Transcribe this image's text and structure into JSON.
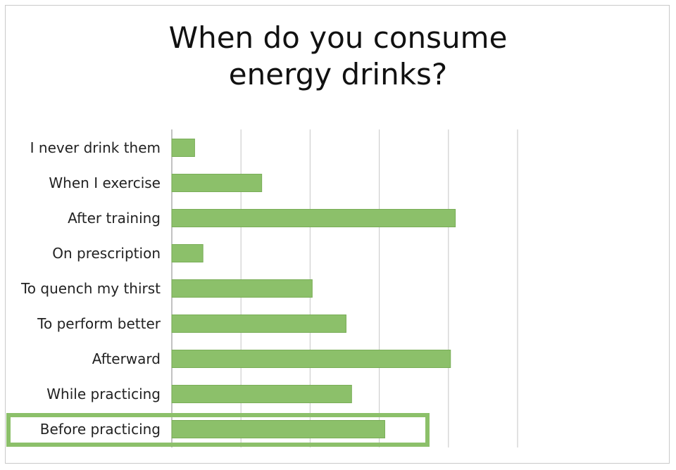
{
  "chart_data": {
    "type": "bar",
    "orientation": "horizontal",
    "title": "When do you consume energy drinks?",
    "title_lines": [
      "When do you consume",
      "energy drinks?"
    ],
    "categories": [
      "I never drink them",
      "When I exercise",
      "After training",
      "On prescription",
      "To quench my thirst",
      "To perform better",
      "Afterward",
      "While practicing",
      "Before practicing"
    ],
    "values": [
      3.3,
      13,
      41,
      4.5,
      20.3,
      25.2,
      40.3,
      26,
      30.8
    ],
    "xlim": [
      0,
      50
    ],
    "xgrid_step": 10,
    "grid": true,
    "tick_labels_shown": false,
    "highlighted_category": "Before practicing",
    "colors": {
      "bar": "#8cc06a",
      "bar_edge": "#79ad57",
      "highlight": "#8cc06a",
      "grid": "#cfcfcf"
    }
  }
}
